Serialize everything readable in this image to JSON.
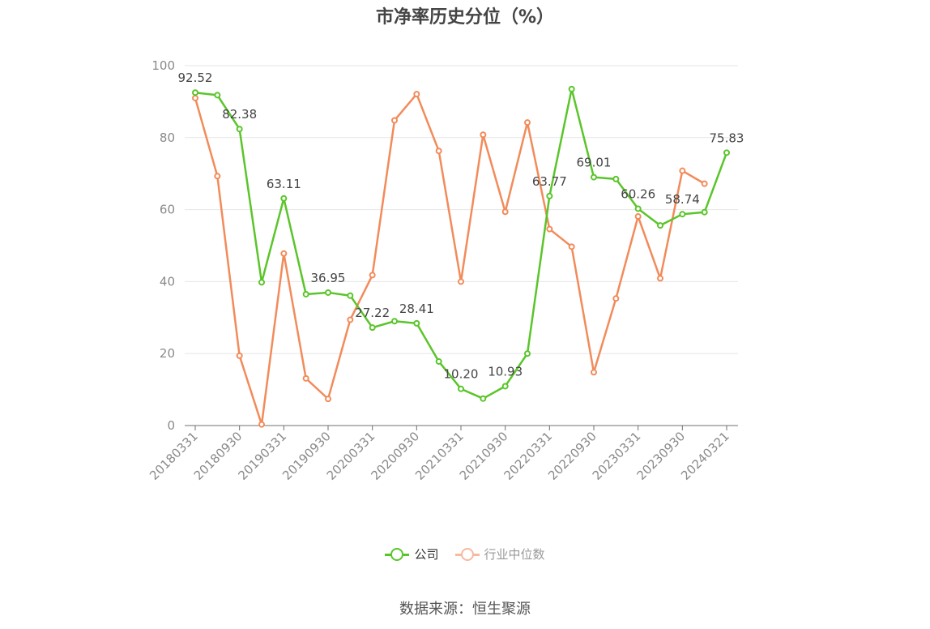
{
  "chart_data": {
    "type": "line",
    "title": "市净率历史分位（%）",
    "source": "数据来源：恒生聚源",
    "ylim": [
      0,
      100
    ],
    "yticks": [
      0,
      20,
      40,
      60,
      80,
      100
    ],
    "grid": true,
    "legend_position": "bottom",
    "x": [
      "20180331",
      "20180630",
      "20180930",
      "20181231",
      "20190331",
      "20190630",
      "20190930",
      "20191231",
      "20200331",
      "20200630",
      "20200930",
      "20201231",
      "20210331",
      "20210630",
      "20210930",
      "20211231",
      "20220331",
      "20220630",
      "20220930",
      "20221231",
      "20230331",
      "20230630",
      "20230930",
      "20231231",
      "20240321"
    ],
    "xticks": [
      "20180331",
      "20180930",
      "20190331",
      "20190930",
      "20200331",
      "20200930",
      "20210331",
      "20210930",
      "20220331",
      "20220930",
      "20230331",
      "20230930",
      "20240321"
    ],
    "series": [
      {
        "name": "公司",
        "color": "#5ac52a",
        "values": [
          92.52,
          91.8,
          82.38,
          39.8,
          63.11,
          36.5,
          36.95,
          36.1,
          27.22,
          29.0,
          28.41,
          17.8,
          10.2,
          7.5,
          10.93,
          20.0,
          63.77,
          93.5,
          69.01,
          68.5,
          60.26,
          55.6,
          58.74,
          59.3,
          75.83
        ],
        "labels": {
          "0": "92.52",
          "2": "82.38",
          "4": "63.11",
          "6": "36.95",
          "8": "27.22",
          "10": "28.41",
          "12": "10.20",
          "14": "10.93",
          "16": "63.77",
          "18": "69.01",
          "20": "60.26",
          "22": "58.74",
          "24": "75.83"
        }
      },
      {
        "name": "行业中位数",
        "color": "#f28b5a",
        "values": [
          91.0,
          69.3,
          19.4,
          0.3,
          47.8,
          13.1,
          7.4,
          29.4,
          41.8,
          84.8,
          92.1,
          76.3,
          40.0,
          80.8,
          59.4,
          84.2,
          54.6,
          49.7,
          14.8,
          35.3,
          58.1,
          40.9,
          70.8,
          67.2,
          null
        ]
      }
    ]
  }
}
